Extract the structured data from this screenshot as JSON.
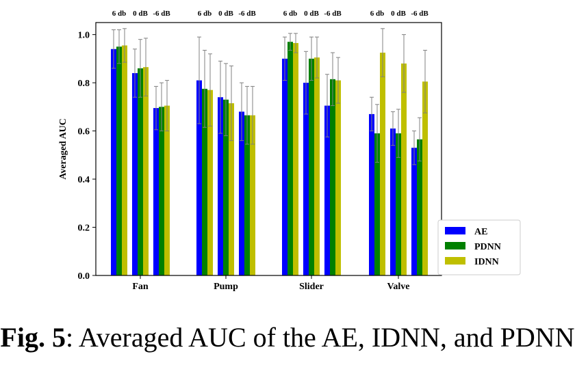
{
  "chart_data": {
    "type": "bar",
    "categories": [
      "Fan",
      "Pump",
      "Slider",
      "Valve"
    ],
    "snr_labels": [
      "6 db",
      "0 dB",
      "-6 dB"
    ],
    "ylabel": "Averaged AUC",
    "xlabel": "",
    "ylim": [
      0,
      1.05
    ],
    "yticks": [
      "0.0",
      "0.2",
      "0.4",
      "0.6",
      "0.8",
      "1.0"
    ],
    "legend_position": "lower-right",
    "series": [
      {
        "name": "AE",
        "color": "#0000ff",
        "values": [
          [
            0.94,
            0.84,
            0.695
          ],
          [
            0.81,
            0.74,
            0.68
          ],
          [
            0.9,
            0.8,
            0.705
          ],
          [
            0.67,
            0.61,
            0.53
          ]
        ],
        "errors": [
          [
            0.08,
            0.1,
            0.09
          ],
          [
            0.18,
            0.15,
            0.12
          ],
          [
            0.09,
            0.13,
            0.13
          ],
          [
            0.07,
            0.07,
            0.07
          ]
        ]
      },
      {
        "name": "PDNN",
        "color": "#008000",
        "values": [
          [
            0.95,
            0.86,
            0.7
          ],
          [
            0.775,
            0.73,
            0.665
          ],
          [
            0.97,
            0.9,
            0.815
          ],
          [
            0.59,
            0.59,
            0.565
          ]
        ],
        "errors": [
          [
            0.07,
            0.12,
            0.1
          ],
          [
            0.16,
            0.15,
            0.12
          ],
          [
            0.035,
            0.09,
            0.11
          ],
          [
            0.12,
            0.1,
            0.09
          ]
        ]
      },
      {
        "name": "IDNN",
        "color": "#bfbf00",
        "values": [
          [
            0.955,
            0.865,
            0.705
          ],
          [
            0.77,
            0.715,
            0.665
          ],
          [
            0.965,
            0.905,
            0.81
          ],
          [
            0.925,
            0.88,
            0.805
          ]
        ],
        "errors": [
          [
            0.07,
            0.12,
            0.105
          ],
          [
            0.15,
            0.155,
            0.12
          ],
          [
            0.04,
            0.085,
            0.095
          ],
          [
            0.1,
            0.12,
            0.13
          ]
        ]
      }
    ]
  },
  "caption": {
    "label": "Fig. 5",
    "text": ": Averaged AUC of the AE, IDNN, and PDNN"
  }
}
